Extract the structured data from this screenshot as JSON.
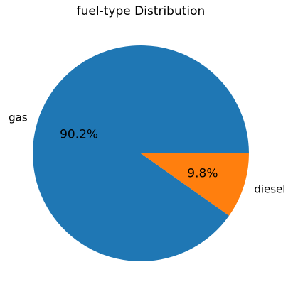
{
  "chart_data": {
    "type": "pie",
    "title": "fuel-type Distribution",
    "categories": [
      "gas",
      "diesel"
    ],
    "values": [
      90.2,
      9.8
    ],
    "percent_labels": [
      "90.2%",
      "9.8%"
    ],
    "colors": [
      "#1f77b4",
      "#ff7f0e"
    ],
    "legend": "none"
  }
}
